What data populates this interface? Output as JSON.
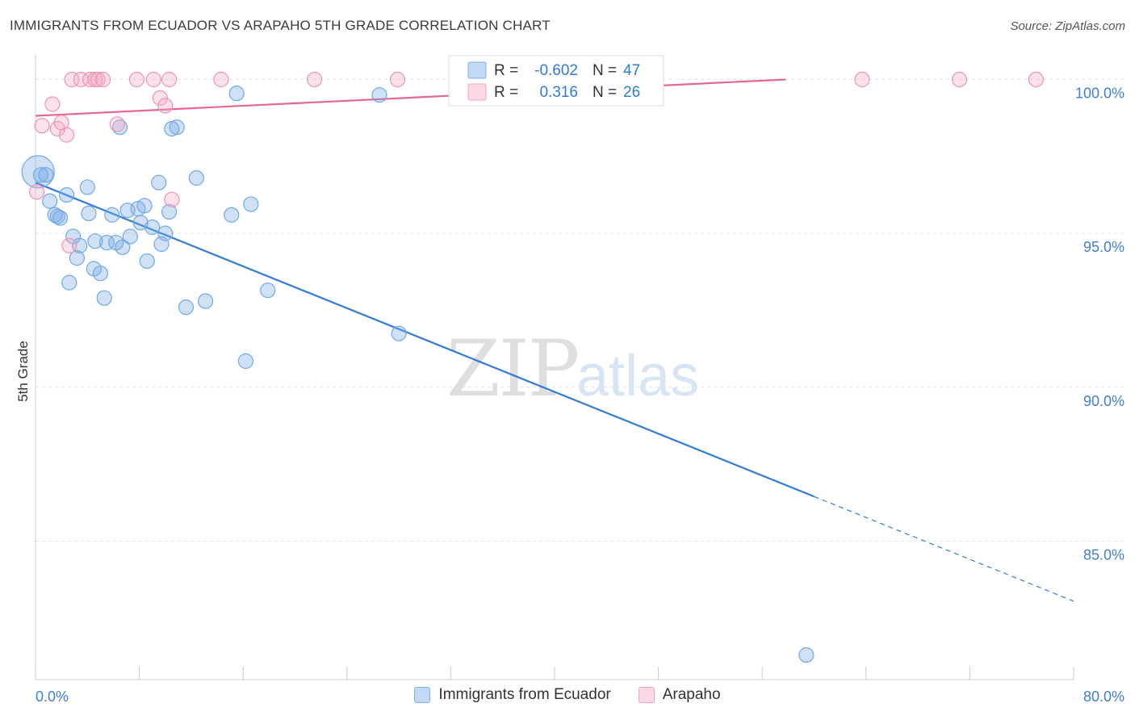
{
  "header": {
    "title": "IMMIGRANTS FROM ECUADOR VS ARAPAHO 5TH GRADE CORRELATION CHART",
    "source": "Source: ZipAtlas.com"
  },
  "watermark": {
    "zip": "ZIP",
    "atlas": "atlas"
  },
  "colors": {
    "blue": "#6fa8e6",
    "blue_fill": "rgba(120,170,230,0.35)",
    "blue_line": "#2f7bd6",
    "pink": "#ec94b2",
    "pink_fill": "rgba(244,170,195,0.35)",
    "pink_line": "#e5688f",
    "tick_text": "#3f7fd0",
    "grid": "#e2e2e2"
  },
  "chart_data": {
    "type": "scatter",
    "title": "IMMIGRANTS FROM ECUADOR VS ARAPAHO 5TH GRADE CORRELATION CHART",
    "xlabel": "",
    "ylabel": "5th Grade",
    "xlim": [
      0,
      80
    ],
    "ylim": [
      80.5,
      100.8
    ],
    "x_tick_labels": [
      {
        "value": 0,
        "label": "0.0%"
      },
      {
        "value": 80,
        "label": "80.0%"
      }
    ],
    "y_ticks": [
      {
        "value": 100,
        "label": "100.0%"
      },
      {
        "value": 95,
        "label": "95.0%"
      },
      {
        "value": 90,
        "label": "90.0%"
      },
      {
        "value": 85,
        "label": "85.0%"
      }
    ],
    "legend_position": "top-center",
    "stats": [
      {
        "r_label": "R =",
        "r_value": "-0.602",
        "n_label": "N =",
        "n_value": "47"
      },
      {
        "r_label": "R =",
        "r_value": "0.316",
        "n_label": "N =",
        "n_value": "26"
      }
    ],
    "series": [
      {
        "name": "Immigrants from Ecuador",
        "color": "blue",
        "trend": {
          "x0": 0,
          "y0": 96.65,
          "x1": 60,
          "y1": 86.45,
          "x_dash_end": 80,
          "y_dash_end": 83.05
        },
        "points": [
          [
            0.2,
            97.0,
            20
          ],
          [
            0.4,
            96.9,
            9
          ],
          [
            0.8,
            96.9,
            9
          ],
          [
            1.1,
            96.05,
            9
          ],
          [
            1.5,
            95.6,
            9
          ],
          [
            1.7,
            95.55,
            9
          ],
          [
            1.9,
            95.5,
            9
          ],
          [
            2.4,
            96.25,
            9
          ],
          [
            2.6,
            93.4,
            9
          ],
          [
            2.9,
            94.9,
            9
          ],
          [
            3.2,
            94.2,
            9
          ],
          [
            3.4,
            94.6,
            9
          ],
          [
            4.0,
            96.5,
            9
          ],
          [
            4.1,
            95.65,
            9
          ],
          [
            4.5,
            93.85,
            9
          ],
          [
            4.6,
            94.75,
            9
          ],
          [
            5.0,
            93.7,
            9
          ],
          [
            5.3,
            92.9,
            9
          ],
          [
            5.5,
            94.7,
            9
          ],
          [
            5.9,
            95.6,
            9
          ],
          [
            6.2,
            94.7,
            9
          ],
          [
            6.5,
            98.45,
            9
          ],
          [
            6.7,
            94.55,
            9
          ],
          [
            7.1,
            95.75,
            9
          ],
          [
            7.3,
            94.9,
            9
          ],
          [
            7.9,
            95.8,
            9
          ],
          [
            8.1,
            95.35,
            9
          ],
          [
            8.4,
            95.9,
            9
          ],
          [
            8.6,
            94.1,
            9
          ],
          [
            9.0,
            95.2,
            9
          ],
          [
            9.5,
            96.65,
            9
          ],
          [
            9.7,
            94.65,
            9
          ],
          [
            10.0,
            95.0,
            9
          ],
          [
            10.5,
            98.4,
            9
          ],
          [
            10.3,
            95.7,
            9
          ],
          [
            10.9,
            98.45,
            9
          ],
          [
            11.6,
            92.6,
            9
          ],
          [
            12.4,
            96.8,
            9
          ],
          [
            13.1,
            92.8,
            9
          ],
          [
            15.1,
            95.6,
            9
          ],
          [
            15.5,
            99.55,
            9
          ],
          [
            16.2,
            90.85,
            9
          ],
          [
            16.6,
            95.95,
            9
          ],
          [
            17.9,
            93.15,
            9
          ],
          [
            26.5,
            99.5,
            9
          ],
          [
            28.0,
            91.75,
            9
          ],
          [
            59.4,
            81.3,
            9
          ]
        ]
      },
      {
        "name": "Arapaho",
        "color": "pink",
        "trend": {
          "x0": 0,
          "y0": 98.82,
          "x1": 57.8,
          "y1": 100.0
        },
        "points": [
          [
            0.1,
            96.35,
            9
          ],
          [
            0.5,
            98.5,
            9
          ],
          [
            1.3,
            99.2,
            9
          ],
          [
            1.7,
            98.4,
            9
          ],
          [
            2.0,
            98.6,
            9
          ],
          [
            2.4,
            98.2,
            9
          ],
          [
            2.6,
            94.6,
            9
          ],
          [
            2.8,
            100.0,
            9
          ],
          [
            3.5,
            100.0,
            9
          ],
          [
            4.2,
            100.0,
            9
          ],
          [
            4.6,
            100.0,
            9
          ],
          [
            4.8,
            100.0,
            9
          ],
          [
            5.2,
            100.0,
            9
          ],
          [
            6.3,
            98.55,
            9
          ],
          [
            7.8,
            100.0,
            9
          ],
          [
            9.1,
            100.0,
            9
          ],
          [
            9.6,
            99.4,
            9
          ],
          [
            10.0,
            99.15,
            9
          ],
          [
            10.3,
            100.0,
            9
          ],
          [
            10.5,
            96.1,
            9
          ],
          [
            14.3,
            100.0,
            9
          ],
          [
            21.5,
            100.0,
            9
          ],
          [
            27.9,
            100.0,
            9
          ],
          [
            63.7,
            100.0,
            9
          ],
          [
            71.2,
            100.0,
            9
          ],
          [
            77.1,
            100.0,
            9
          ]
        ]
      }
    ]
  }
}
